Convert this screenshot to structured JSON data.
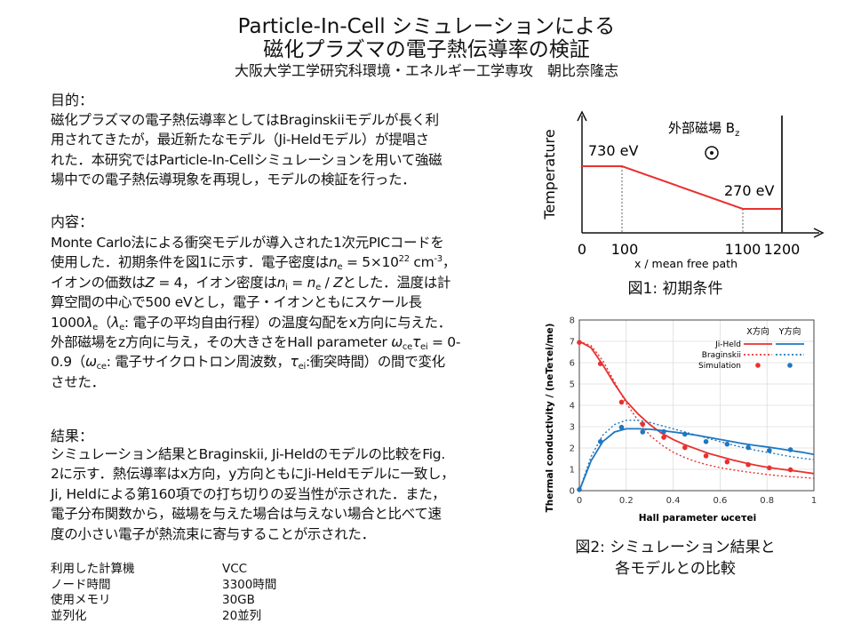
{
  "title": {
    "line1": "Particle-In-Cell シミュレーションによる",
    "line2": "磁化プラズマの電子熱伝導率の検証",
    "affiliation": "大阪大学工学研究科環境・エネルギー工学専攻　朝比奈隆志"
  },
  "sections": {
    "purpose": {
      "heading": "目的：",
      "lines": [
        [
          [
            "磁化プラズマの電子熱伝導率としてはBraginskiiモデルが長く利",
            ""
          ]
        ],
        [
          [
            "用されてきたが，最近新たなモデル（Ji-Heldモデル）が提唱さ",
            ""
          ]
        ],
        [
          [
            "れた．本研究ではParticle-In-Cellシミュレーションを用いて強磁",
            ""
          ]
        ],
        [
          [
            "場中での電子熱伝導現象を再現し，モデルの検証を行った．",
            ""
          ]
        ]
      ]
    },
    "content": {
      "heading": "内容：",
      "lines": [
        [
          [
            "Monte Carlo法による衝突モデルが導入された1次元PICコードを",
            ""
          ]
        ],
        [
          [
            "使用した．初期条件を図1に示す．電子密度は",
            ""
          ],
          [
            "n",
            "i"
          ],
          [
            "e",
            "sub"
          ],
          [
            " = 5×10",
            ""
          ],
          [
            "22",
            "sup"
          ],
          [
            " cm",
            ""
          ],
          [
            "-3",
            "sup"
          ],
          [
            "，",
            ""
          ]
        ],
        [
          [
            "イオンの価数は",
            ""
          ],
          [
            "Z",
            "i"
          ],
          [
            " = 4，イオン密度は",
            ""
          ],
          [
            "n",
            "i"
          ],
          [
            "i",
            "sub"
          ],
          [
            " = ",
            ""
          ],
          [
            "n",
            "i"
          ],
          [
            "e",
            "sub"
          ],
          [
            " / ",
            ""
          ],
          [
            "Z",
            "i"
          ],
          [
            "とした．温度は計",
            ""
          ]
        ],
        [
          [
            "算空間の中心で500 eVとし，電子・イオンともにスケール長",
            ""
          ]
        ],
        [
          [
            "1000",
            ""
          ],
          [
            "λ",
            "i"
          ],
          [
            "e",
            "sub"
          ],
          [
            "（",
            ""
          ],
          [
            "λ",
            "i"
          ],
          [
            "e",
            "sub"
          ],
          [
            ": 電子の平均自由行程）の温度勾配をx方向に与えた．",
            ""
          ]
        ],
        [
          [
            "外部磁場をz方向に与え，その大きさをHall parameter ",
            ""
          ],
          [
            "ω",
            "i"
          ],
          [
            "ce",
            "sub"
          ],
          [
            "τ",
            "i"
          ],
          [
            "ei",
            "sub"
          ],
          [
            " = 0-",
            ""
          ]
        ],
        [
          [
            "0.9（",
            ""
          ],
          [
            "ω",
            "i"
          ],
          [
            "ce",
            "sub"
          ],
          [
            ": 電子サイクロトロン周波数，",
            ""
          ],
          [
            "τ",
            "i"
          ],
          [
            "ei",
            "sub"
          ],
          [
            ":衝突時間）の間で変化",
            ""
          ]
        ],
        [
          [
            "させた．",
            ""
          ]
        ]
      ]
    },
    "results": {
      "heading": "結果：",
      "lines": [
        [
          [
            "シミュレーション結果とBraginskii, Ji-Heldのモデルの比較をFig.",
            ""
          ]
        ],
        [
          [
            "2に示す．熱伝導率はx方向，y方向ともにJi-Heldモデルに一致し，",
            ""
          ]
        ],
        [
          [
            "Ji, Heldによる第160項での打ち切りの妥当性が示された．また，",
            ""
          ]
        ],
        [
          [
            "電子分布関数から，磁場を与えた場合は与えない場合と比べて速",
            ""
          ]
        ],
        [
          [
            "度の小さい電子が熱流束に寄与することが示された．",
            ""
          ]
        ]
      ]
    }
  },
  "specs": [
    {
      "key": "利用した計算機",
      "value": "VCC"
    },
    {
      "key": "ノード時間",
      "value": "3300時間"
    },
    {
      "key": "使用メモリ",
      "value": "30GB"
    },
    {
      "key": "並列化",
      "value": "20並列"
    }
  ],
  "figure1": {
    "caption": "図1: 初期条件",
    "ylabel": "Temperature",
    "xlabel": "x / mean free path",
    "field_label": "外部磁場 B",
    "field_sub": "z",
    "t_high": "730 eV",
    "t_low": "270 eV",
    "xticks": [
      "0",
      "100",
      "1100",
      "1200"
    ],
    "color": "#e8312f"
  },
  "chart_data": {
    "type": "line",
    "caption_line1": "図2: シミュレーション結果と",
    "caption_line2": "各モデルとの比較",
    "xlabel": "Hall parameter ωceτei",
    "ylabel": "Thermal conductivity / (neTeτei/me)",
    "xlim": [
      0,
      1
    ],
    "ylim": [
      0,
      8
    ],
    "xticks": [
      "0",
      "0.2",
      "0.4",
      "0.6",
      "0.8",
      "1"
    ],
    "yticks": [
      "0",
      "1",
      "2",
      "3",
      "4",
      "5",
      "6",
      "7",
      "8"
    ],
    "grid": true,
    "legend": {
      "placement": "top-right",
      "col_x": "X方向",
      "col_y": "Y方向",
      "rows": [
        "Ji-Held",
        "Braginskii",
        "Simulation"
      ]
    },
    "colors": {
      "x": "#e8312f",
      "y": "#1f77c0"
    },
    "model_x": [
      0,
      0.05,
      0.1,
      0.15,
      0.2,
      0.25,
      0.3,
      0.35,
      0.4,
      0.45,
      0.5,
      0.55,
      0.6,
      0.65,
      0.7,
      0.75,
      0.8,
      0.85,
      0.9,
      0.95,
      1.0
    ],
    "series": [
      {
        "name": "Ji-Held X方向",
        "dir": "x",
        "style": "solid",
        "values": [
          7.0,
          6.7,
          5.9,
          5.0,
          4.2,
          3.6,
          3.1,
          2.7,
          2.4,
          2.15,
          1.95,
          1.75,
          1.6,
          1.45,
          1.32,
          1.2,
          1.1,
          1.02,
          0.95,
          0.88,
          0.8
        ]
      },
      {
        "name": "Ji-Held Y方向",
        "dir": "y",
        "style": "solid",
        "values": [
          0,
          1.4,
          2.3,
          2.75,
          2.9,
          2.9,
          2.88,
          2.82,
          2.75,
          2.68,
          2.6,
          2.5,
          2.4,
          2.3,
          2.2,
          2.12,
          2.05,
          1.97,
          1.88,
          1.8,
          1.7
        ]
      },
      {
        "name": "Braginskii X方向",
        "dir": "x",
        "style": "dotted",
        "values": [
          7.0,
          6.8,
          6.1,
          5.1,
          4.1,
          3.3,
          2.6,
          2.15,
          1.8,
          1.55,
          1.35,
          1.2,
          1.08,
          0.98,
          0.9,
          0.83,
          0.76,
          0.7,
          0.66,
          0.62,
          0.58
        ]
      },
      {
        "name": "Braginskii Y方向",
        "dir": "y",
        "style": "dotted",
        "values": [
          0,
          1.6,
          2.6,
          3.1,
          3.3,
          3.3,
          3.2,
          3.05,
          2.9,
          2.75,
          2.6,
          2.45,
          2.3,
          2.15,
          2.02,
          1.9,
          1.8,
          1.7,
          1.6,
          1.52,
          1.45
        ]
      }
    ],
    "simulation": {
      "x": [
        0,
        0.09,
        0.18,
        0.27,
        0.36,
        0.45,
        0.54,
        0.63,
        0.72,
        0.81,
        0.9
      ],
      "X方向": [
        6.95,
        5.95,
        4.15,
        3.12,
        2.5,
        2.02,
        1.63,
        1.35,
        1.22,
        1.07,
        0.98
      ],
      "Y方向": [
        0.05,
        2.3,
        2.97,
        2.75,
        2.77,
        2.65,
        2.3,
        2.18,
        2.02,
        1.88,
        1.92
      ]
    }
  }
}
